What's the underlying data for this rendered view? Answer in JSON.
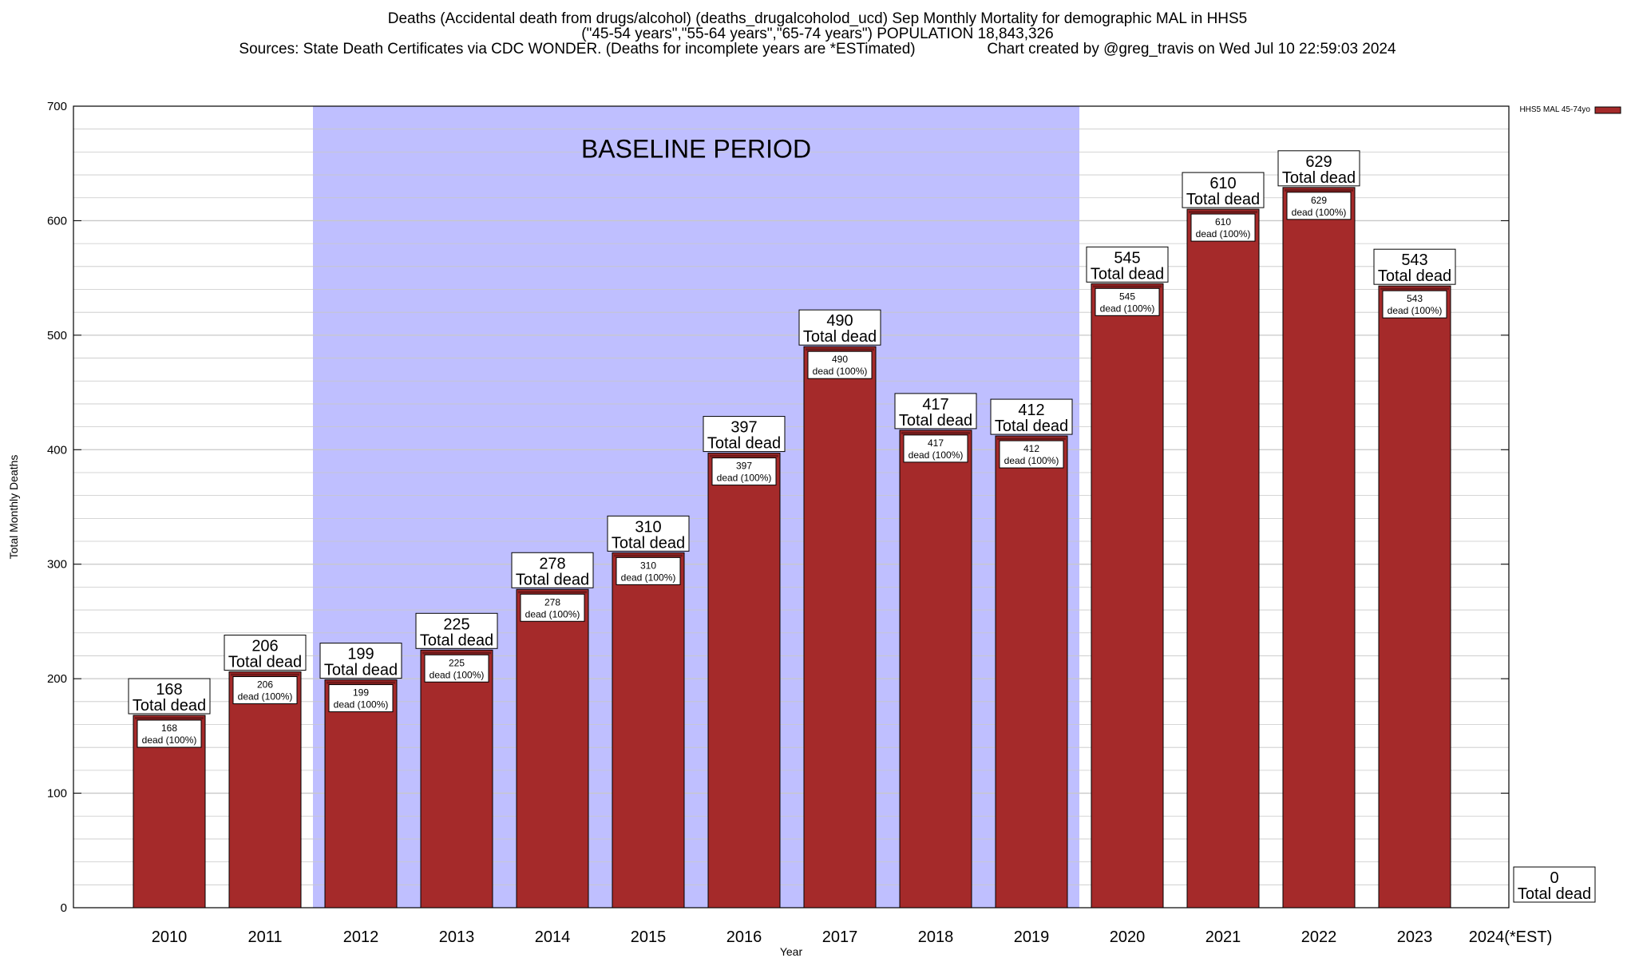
{
  "title_lines": [
    "Deaths (Accidental death from drugs/alcohol) (deaths_drugalcoholod_ucd) Sep Monthly Mortality for demographic MAL in HHS5",
    "(\"45-54 years\",\"55-64 years\",\"65-74 years\") POPULATION 18,843,326",
    "Sources: State Death Certificates via CDC WONDER. (Deaths for incomplete years are *ESTimated)                 Chart created by @greg_travis on Wed Jul 10 22:59:03 2024"
  ],
  "colors": {
    "bar": "#a52a2a",
    "baseline_shade": "#bfbfff",
    "grid": "#c8c8c8"
  },
  "chart_data": {
    "type": "bar",
    "title": "Deaths (Accidental death from drugs/alcohol) (deaths_drugalcoholod_ucd) Sep Monthly Mortality for demographic MAL in HHS5",
    "xlabel": "Year",
    "ylabel": "Total Monthly Deaths",
    "ylim": [
      0,
      700
    ],
    "yticks": [
      0,
      100,
      200,
      300,
      400,
      500,
      600,
      700
    ],
    "grid": true,
    "legend_position": "top-right",
    "categories": [
      "2010",
      "2011",
      "2012",
      "2013",
      "2014",
      "2015",
      "2016",
      "2017",
      "2018",
      "2019",
      "2020",
      "2021",
      "2022",
      "2023",
      "2024(*EST)"
    ],
    "series": [
      {
        "name": "HHS5 MAL 45-74yo",
        "values": [
          168,
          206,
          199,
          225,
          278,
          310,
          397,
          490,
          417,
          412,
          545,
          610,
          629,
          543,
          0
        ]
      }
    ],
    "top_label_suffix": "Total dead",
    "inner_label_suffix": "dead (100%)",
    "baseline_period": {
      "label": "BASELINE PERIOD",
      "start": "2012",
      "end": "2019"
    }
  }
}
